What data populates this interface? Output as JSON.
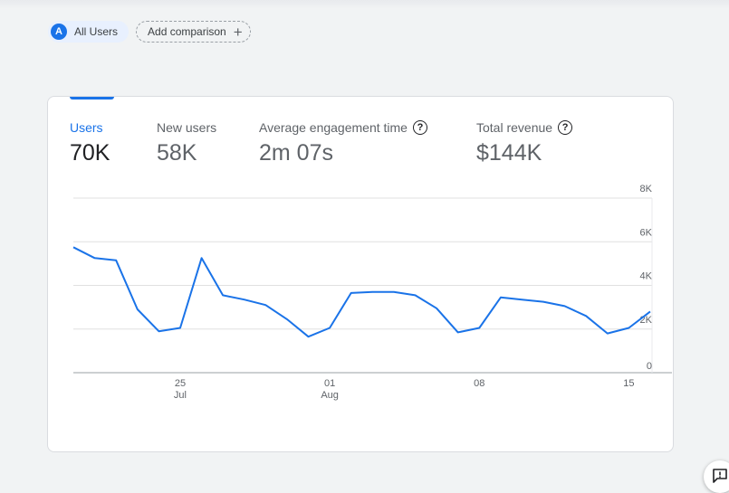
{
  "comparison_bar": {
    "all_users": {
      "avatar_letter": "A",
      "label": "All Users"
    },
    "add_comparison": {
      "label": "Add comparison",
      "icon": "plus-icon"
    }
  },
  "metrics": [
    {
      "label": "Users",
      "value": "70K",
      "help": false
    },
    {
      "label": "New users",
      "value": "58K",
      "help": false
    },
    {
      "label": "Average engagement time",
      "value": "2m 07s",
      "help": true
    },
    {
      "label": "Total revenue",
      "value": "$144K",
      "help": true
    }
  ],
  "help_glyph": "?",
  "colors": {
    "accent": "#1a73e8",
    "line": "#1a73e8",
    "grid": "#e0e0e0"
  },
  "chart_data": {
    "type": "line",
    "series": [
      {
        "values": [
          5750,
          5250,
          5150,
          2900,
          1900,
          2050,
          5250,
          3550,
          3350,
          3100,
          2450,
          1650,
          2050,
          3650,
          3700,
          3700,
          3550,
          2950,
          1850,
          2050,
          3450,
          3350,
          3250,
          3050,
          2600,
          1800,
          2050,
          2800
        ]
      }
    ],
    "x_tick_labels": [
      {
        "index": 5,
        "day": "25",
        "month": "Jul"
      },
      {
        "index": 12,
        "day": "01",
        "month": "Aug"
      },
      {
        "index": 19,
        "day": "08",
        "month": ""
      },
      {
        "index": 26,
        "day": "15",
        "month": ""
      }
    ],
    "y_ticks": [
      {
        "value": 8000,
        "label": "8K"
      },
      {
        "value": 6000,
        "label": "6K"
      },
      {
        "value": 4000,
        "label": "4K"
      },
      {
        "value": 2000,
        "label": "2K"
      },
      {
        "value": 0,
        "label": "0"
      }
    ],
    "ylim": [
      0,
      8000
    ],
    "grid": true
  },
  "feedback_icon": "feedback-icon"
}
